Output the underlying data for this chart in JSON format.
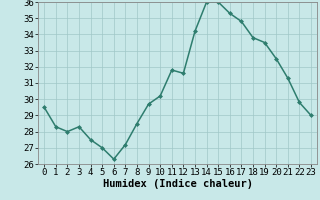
{
  "x": [
    0,
    1,
    2,
    3,
    4,
    5,
    6,
    7,
    8,
    9,
    10,
    11,
    12,
    13,
    14,
    15,
    16,
    17,
    18,
    19,
    20,
    21,
    22,
    23
  ],
  "y": [
    29.5,
    28.3,
    28.0,
    28.3,
    27.5,
    27.0,
    26.3,
    27.2,
    28.5,
    29.7,
    30.2,
    31.8,
    31.6,
    34.2,
    36.0,
    36.0,
    35.3,
    34.8,
    33.8,
    33.5,
    32.5,
    31.3,
    29.8,
    29.0
  ],
  "line_color": "#2e7d6e",
  "marker": "D",
  "marker_size": 2.0,
  "background_color": "#c8e8e8",
  "grid_color": "#a0c8c8",
  "xlabel": "Humidex (Indice chaleur)",
  "ylim": [
    26,
    36
  ],
  "xlim": [
    -0.5,
    23.5
  ],
  "yticks": [
    26,
    27,
    28,
    29,
    30,
    31,
    32,
    33,
    34,
    35,
    36
  ],
  "xticks": [
    0,
    1,
    2,
    3,
    4,
    5,
    6,
    7,
    8,
    9,
    10,
    11,
    12,
    13,
    14,
    15,
    16,
    17,
    18,
    19,
    20,
    21,
    22,
    23
  ],
  "tick_fontsize": 6.5,
  "xlabel_fontsize": 7.5,
  "linewidth": 1.1
}
